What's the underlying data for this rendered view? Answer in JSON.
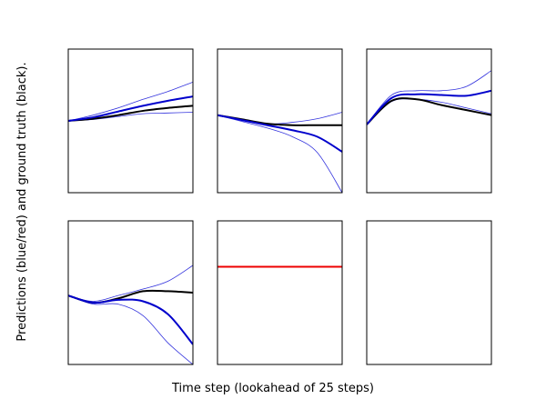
{
  "figure": {
    "xlabel": "Time step (lookahead of 25 steps)",
    "ylabel": "Predictions (blue/red) and ground truth (black)."
  },
  "colors": {
    "ground_truth": "#000000",
    "prediction_mean": "#0000cc",
    "prediction_band": "#3333dd",
    "constant_prediction": "#ee0000",
    "frame": "#000000"
  },
  "chart_data": [
    {
      "type": "line",
      "x": [
        0,
        5,
        10,
        15,
        20,
        25
      ],
      "ylim": [
        -1,
        1
      ],
      "series": [
        {
          "role": "ground_truth",
          "values": [
            0.0,
            0.03,
            0.08,
            0.14,
            0.18,
            0.21
          ]
        },
        {
          "role": "prediction_mean",
          "values": [
            0.0,
            0.05,
            0.13,
            0.21,
            0.28,
            0.34
          ]
        },
        {
          "role": "prediction_upper",
          "values": [
            0.0,
            0.08,
            0.18,
            0.3,
            0.41,
            0.54
          ]
        },
        {
          "role": "prediction_lower",
          "values": [
            0.0,
            0.02,
            0.06,
            0.1,
            0.11,
            0.12
          ]
        }
      ]
    },
    {
      "type": "line",
      "x": [
        0,
        5,
        10,
        15,
        20,
        25
      ],
      "ylim": [
        -1,
        1
      ],
      "series": [
        {
          "role": "ground_truth",
          "values": [
            0.08,
            0.02,
            -0.04,
            -0.06,
            -0.06,
            -0.06
          ]
        },
        {
          "role": "prediction_mean",
          "values": [
            0.08,
            0.01,
            -0.06,
            -0.13,
            -0.22,
            -0.43
          ]
        },
        {
          "role": "prediction_upper",
          "values": [
            0.08,
            0.02,
            -0.04,
            -0.02,
            0.03,
            0.12
          ]
        },
        {
          "role": "prediction_lower",
          "values": [
            0.08,
            -0.01,
            -0.1,
            -0.22,
            -0.44,
            -1.0
          ]
        }
      ]
    },
    {
      "type": "line",
      "x": [
        0,
        5,
        10,
        15,
        20,
        25
      ],
      "ylim": [
        -1,
        1
      ],
      "series": [
        {
          "role": "ground_truth",
          "values": [
            -0.05,
            0.28,
            0.3,
            0.22,
            0.15,
            0.08
          ]
        },
        {
          "role": "prediction_mean",
          "values": [
            -0.05,
            0.32,
            0.37,
            0.36,
            0.35,
            0.42
          ]
        },
        {
          "role": "prediction_upper",
          "values": [
            -0.05,
            0.36,
            0.42,
            0.42,
            0.48,
            0.7
          ]
        },
        {
          "role": "prediction_lower",
          "values": [
            -0.05,
            0.27,
            0.3,
            0.26,
            0.18,
            0.1
          ]
        }
      ]
    },
    {
      "type": "line",
      "x": [
        0,
        5,
        10,
        15,
        20,
        25
      ],
      "ylim": [
        -1,
        1
      ],
      "series": [
        {
          "role": "ground_truth",
          "values": [
            -0.04,
            -0.14,
            -0.08,
            0.02,
            0.02,
            0.0
          ]
        },
        {
          "role": "prediction_mean",
          "values": [
            -0.04,
            -0.14,
            -0.1,
            -0.12,
            -0.3,
            -0.72
          ]
        },
        {
          "role": "prediction_upper",
          "values": [
            -0.04,
            -0.12,
            -0.04,
            0.05,
            0.16,
            0.38
          ]
        },
        {
          "role": "prediction_lower",
          "values": [
            -0.04,
            -0.16,
            -0.16,
            -0.32,
            -0.7,
            -1.0
          ]
        }
      ]
    },
    {
      "type": "line",
      "x": [
        0,
        25
      ],
      "ylim": [
        -1,
        1
      ],
      "series": [
        {
          "role": "constant_prediction",
          "values": [
            0.36,
            0.36
          ]
        }
      ]
    },
    {
      "type": "line",
      "x": [],
      "ylim": [
        -1,
        1
      ],
      "series": []
    }
  ]
}
